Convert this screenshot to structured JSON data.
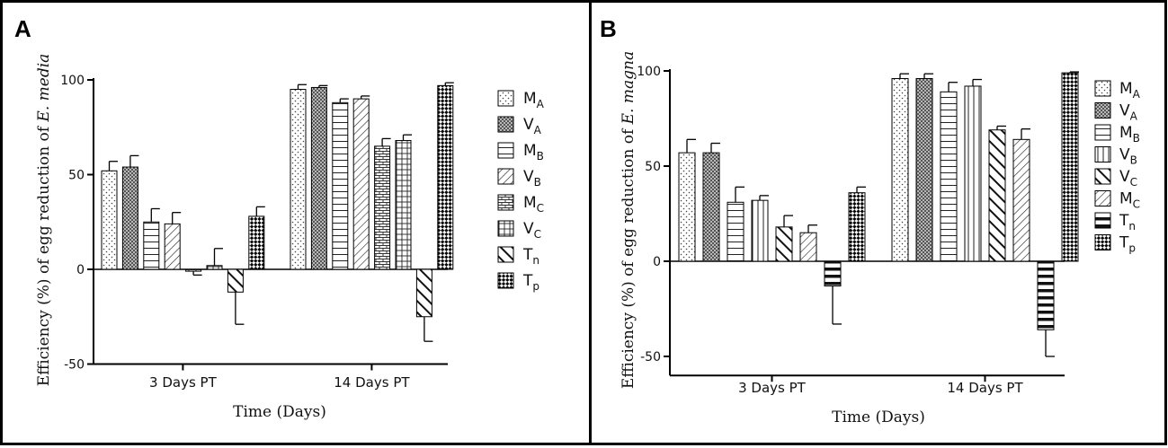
{
  "figure": {
    "chart_data": [
      {
        "type": "bar",
        "panel_label": "A",
        "title": "",
        "xlabel": "Time (Days)",
        "ylabel_prefix": "Efficiency (%) of egg reduction of ",
        "ylabel_species": "E. media",
        "ylim": [
          -50,
          100
        ],
        "yticks": [
          -50,
          0,
          50,
          100
        ],
        "categories": [
          "3 Days  PT",
          "14 Days PT"
        ],
        "series": [
          {
            "name": "M",
            "sub": "A",
            "pattern": "dots",
            "values": [
              52,
              95
            ],
            "errors": [
              5,
              2.5
            ]
          },
          {
            "name": "V",
            "sub": "A",
            "pattern": "dense",
            "values": [
              54,
              96
            ],
            "errors": [
              6,
              1
            ]
          },
          {
            "name": "M",
            "sub": "B",
            "pattern": "hlines",
            "values": [
              25,
              88
            ],
            "errors": [
              7,
              2
            ]
          },
          {
            "name": "V",
            "sub": "B",
            "pattern": "diag",
            "values": [
              24,
              90
            ],
            "errors": [
              6,
              1.5
            ]
          },
          {
            "name": "M",
            "sub": "C",
            "pattern": "brick",
            "values": [
              -1,
              65
            ],
            "errors": [
              2,
              4
            ]
          },
          {
            "name": "V",
            "sub": "C",
            "pattern": "grid",
            "values": [
              2,
              68
            ],
            "errors": [
              9,
              3
            ]
          },
          {
            "name": "T",
            "sub": "n",
            "pattern": "thickdiag",
            "values": [
              -12,
              -25
            ],
            "errors": [
              17,
              13
            ]
          },
          {
            "name": "T",
            "sub": "p",
            "pattern": "checker",
            "values": [
              28,
              97
            ],
            "errors": [
              5,
              1.5
            ]
          }
        ]
      },
      {
        "type": "bar",
        "panel_label": "B",
        "title": "",
        "xlabel": "Time (Days)",
        "ylabel_prefix": "Efficiency (%) of egg reduction of ",
        "ylabel_species": "E. magna",
        "ylim": [
          -60,
          100
        ],
        "yticks": [
          -50,
          0,
          50,
          100
        ],
        "categories": [
          "3 Days PT",
          "14 Days PT"
        ],
        "series": [
          {
            "name": "M",
            "sub": "A",
            "pattern": "dots",
            "values": [
              57,
              96
            ],
            "errors": [
              7,
              2.5
            ]
          },
          {
            "name": "V",
            "sub": "A",
            "pattern": "dense",
            "values": [
              57,
              96
            ],
            "errors": [
              5,
              2.5
            ]
          },
          {
            "name": "M",
            "sub": "B",
            "pattern": "hlines",
            "values": [
              31,
              89
            ],
            "errors": [
              8,
              5
            ]
          },
          {
            "name": "V",
            "sub": "B",
            "pattern": "vlines",
            "values": [
              32,
              92
            ],
            "errors": [
              2.5,
              3.5
            ]
          },
          {
            "name": "V",
            "sub": "C",
            "pattern": "thickdiag",
            "values": [
              18,
              69
            ],
            "errors": [
              6,
              2
            ]
          },
          {
            "name": "M",
            "sub": "C",
            "pattern": "diag",
            "values": [
              15,
              64
            ],
            "errors": [
              4,
              5.5
            ]
          },
          {
            "name": "T",
            "sub": "n",
            "pattern": "thickh",
            "values": [
              -13,
              -36
            ],
            "errors": [
              20,
              14
            ]
          },
          {
            "name": "T",
            "sub": "p",
            "pattern": "checker",
            "values": [
              36,
              99
            ],
            "errors": [
              3,
              0.5
            ]
          }
        ]
      }
    ]
  }
}
